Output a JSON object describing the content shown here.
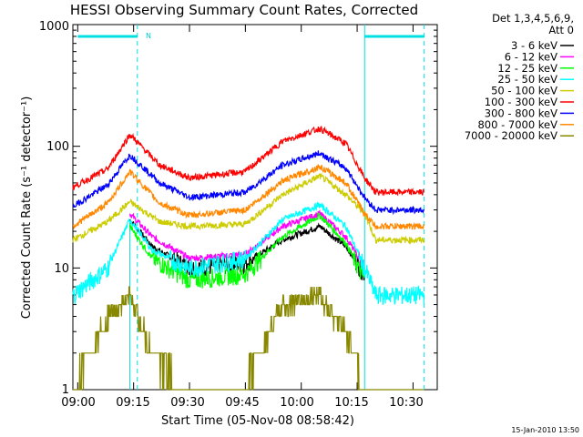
{
  "chart_data": {
    "type": "line",
    "title": "HESSI Observing Summary Count Rates, Corrected",
    "xlabel": "Start Time (05-Nov-08 08:58:42)",
    "ylabel": "Corrected Count Rate (s⁻¹ detector⁻¹)",
    "x_ticks": [
      "09:00",
      "09:15",
      "09:30",
      "09:45",
      "10:00",
      "10:15",
      "10:30"
    ],
    "y_ticks": [
      "1",
      "10",
      "100",
      "1000"
    ],
    "xlim": [
      "08:58:42",
      "10:36:30"
    ],
    "ylim": [
      1,
      1000
    ],
    "y_scale": "log",
    "legend_header": [
      "Det 1,3,4,5,6,9,",
      "Att 0"
    ],
    "legend_placement": "right",
    "timestamp": "15-Jan-2010 13:50",
    "flag_label": "N",
    "markers": {
      "flag_bars": [
        {
          "start": "09:00:00",
          "end": "09:16:00",
          "level": 800
        },
        {
          "start": "10:17:00",
          "end": "10:33:00",
          "level": 800
        }
      ],
      "solid_vertical": [
        "10:17:00"
      ],
      "dashed_vertical": [
        "09:16:00",
        "10:33:00"
      ],
      "night_start_solid": "09:14:00"
    },
    "series": [
      {
        "name": "3 - 6 keV",
        "color": "#000000",
        "points": [
          [
            "09:14:00",
            25
          ],
          [
            "09:20",
            15
          ],
          [
            "09:30",
            10
          ],
          [
            "09:45",
            11
          ],
          [
            "09:55",
            17
          ],
          [
            "10:05",
            22
          ],
          [
            "10:12",
            15
          ],
          [
            "10:17",
            9
          ]
        ]
      },
      {
        "name": "6 - 12 keV",
        "color": "#ff00ff",
        "points": [
          [
            "09:14:00",
            28
          ],
          [
            "09:20",
            18
          ],
          [
            "09:30",
            12
          ],
          [
            "09:45",
            13
          ],
          [
            "09:55",
            22
          ],
          [
            "10:05",
            28
          ],
          [
            "10:12",
            18
          ],
          [
            "10:17",
            10
          ]
        ]
      },
      {
        "name": "12 - 25 keV",
        "color": "#00ff00",
        "points": [
          [
            "09:14:00",
            22
          ],
          [
            "09:20",
            12
          ],
          [
            "09:30",
            8
          ],
          [
            "09:45",
            9
          ],
          [
            "09:55",
            18
          ],
          [
            "10:05",
            27
          ],
          [
            "10:12",
            16
          ],
          [
            "10:17",
            8
          ]
        ]
      },
      {
        "name": "25 - 50 keV",
        "color": "#00ffff",
        "points": [
          [
            "08:58:42",
            6
          ],
          [
            "09:08",
            10
          ],
          [
            "09:14:00",
            25
          ],
          [
            "09:20",
            14
          ],
          [
            "09:30",
            10
          ],
          [
            "09:45",
            12
          ],
          [
            "09:55",
            25
          ],
          [
            "10:05",
            33
          ],
          [
            "10:12",
            22
          ],
          [
            "10:17",
            10
          ],
          [
            "10:20",
            6
          ],
          [
            "10:33",
            6
          ]
        ]
      },
      {
        "name": "50 - 100 keV",
        "color": "#cccc00",
        "points": [
          [
            "08:58:42",
            17
          ],
          [
            "09:08",
            24
          ],
          [
            "09:14:00",
            35
          ],
          [
            "09:22",
            24
          ],
          [
            "09:30",
            22
          ],
          [
            "09:45",
            23
          ],
          [
            "09:55",
            40
          ],
          [
            "10:05",
            57
          ],
          [
            "10:12",
            40
          ],
          [
            "10:17",
            28
          ],
          [
            "10:20",
            17
          ],
          [
            "10:33",
            17
          ]
        ]
      },
      {
        "name": "100 - 300 keV",
        "color": "#ff0000",
        "points": [
          [
            "08:58:42",
            46
          ],
          [
            "09:08",
            65
          ],
          [
            "09:14:00",
            125
          ],
          [
            "09:22",
            70
          ],
          [
            "09:30",
            55
          ],
          [
            "09:45",
            62
          ],
          [
            "09:55",
            110
          ],
          [
            "10:05",
            140
          ],
          [
            "10:12",
            105
          ],
          [
            "10:17",
            55
          ],
          [
            "10:20",
            42
          ],
          [
            "10:33",
            42
          ]
        ]
      },
      {
        "name": "300 - 800 keV",
        "color": "#0000ff",
        "points": [
          [
            "08:58:42",
            32
          ],
          [
            "09:08",
            48
          ],
          [
            "09:14:00",
            85
          ],
          [
            "09:22",
            50
          ],
          [
            "09:30",
            38
          ],
          [
            "09:45",
            42
          ],
          [
            "09:55",
            70
          ],
          [
            "10:05",
            88
          ],
          [
            "10:12",
            66
          ],
          [
            "10:17",
            38
          ],
          [
            "10:20",
            30
          ],
          [
            "10:33",
            30
          ]
        ]
      },
      {
        "name": "800 - 7000 keV",
        "color": "#ff8800",
        "points": [
          [
            "08:58:42",
            22
          ],
          [
            "09:08",
            34
          ],
          [
            "09:14:00",
            62
          ],
          [
            "09:22",
            34
          ],
          [
            "09:30",
            27
          ],
          [
            "09:45",
            30
          ],
          [
            "09:55",
            52
          ],
          [
            "10:05",
            68
          ],
          [
            "10:12",
            50
          ],
          [
            "10:17",
            28
          ],
          [
            "10:20",
            22
          ],
          [
            "10:33",
            22
          ]
        ]
      },
      {
        "name": "7000 - 20000 keV",
        "color": "#888800",
        "points": [
          [
            "08:58:42",
            1
          ],
          [
            "09:08",
            4
          ],
          [
            "09:14:00",
            6
          ],
          [
            "09:20",
            2
          ],
          [
            "09:30",
            1
          ],
          [
            "09:45",
            1.2
          ],
          [
            "09:55",
            5
          ],
          [
            "10:05",
            6
          ],
          [
            "10:12",
            3
          ],
          [
            "10:17",
            1
          ],
          [
            "10:33",
            1
          ]
        ]
      }
    ]
  }
}
